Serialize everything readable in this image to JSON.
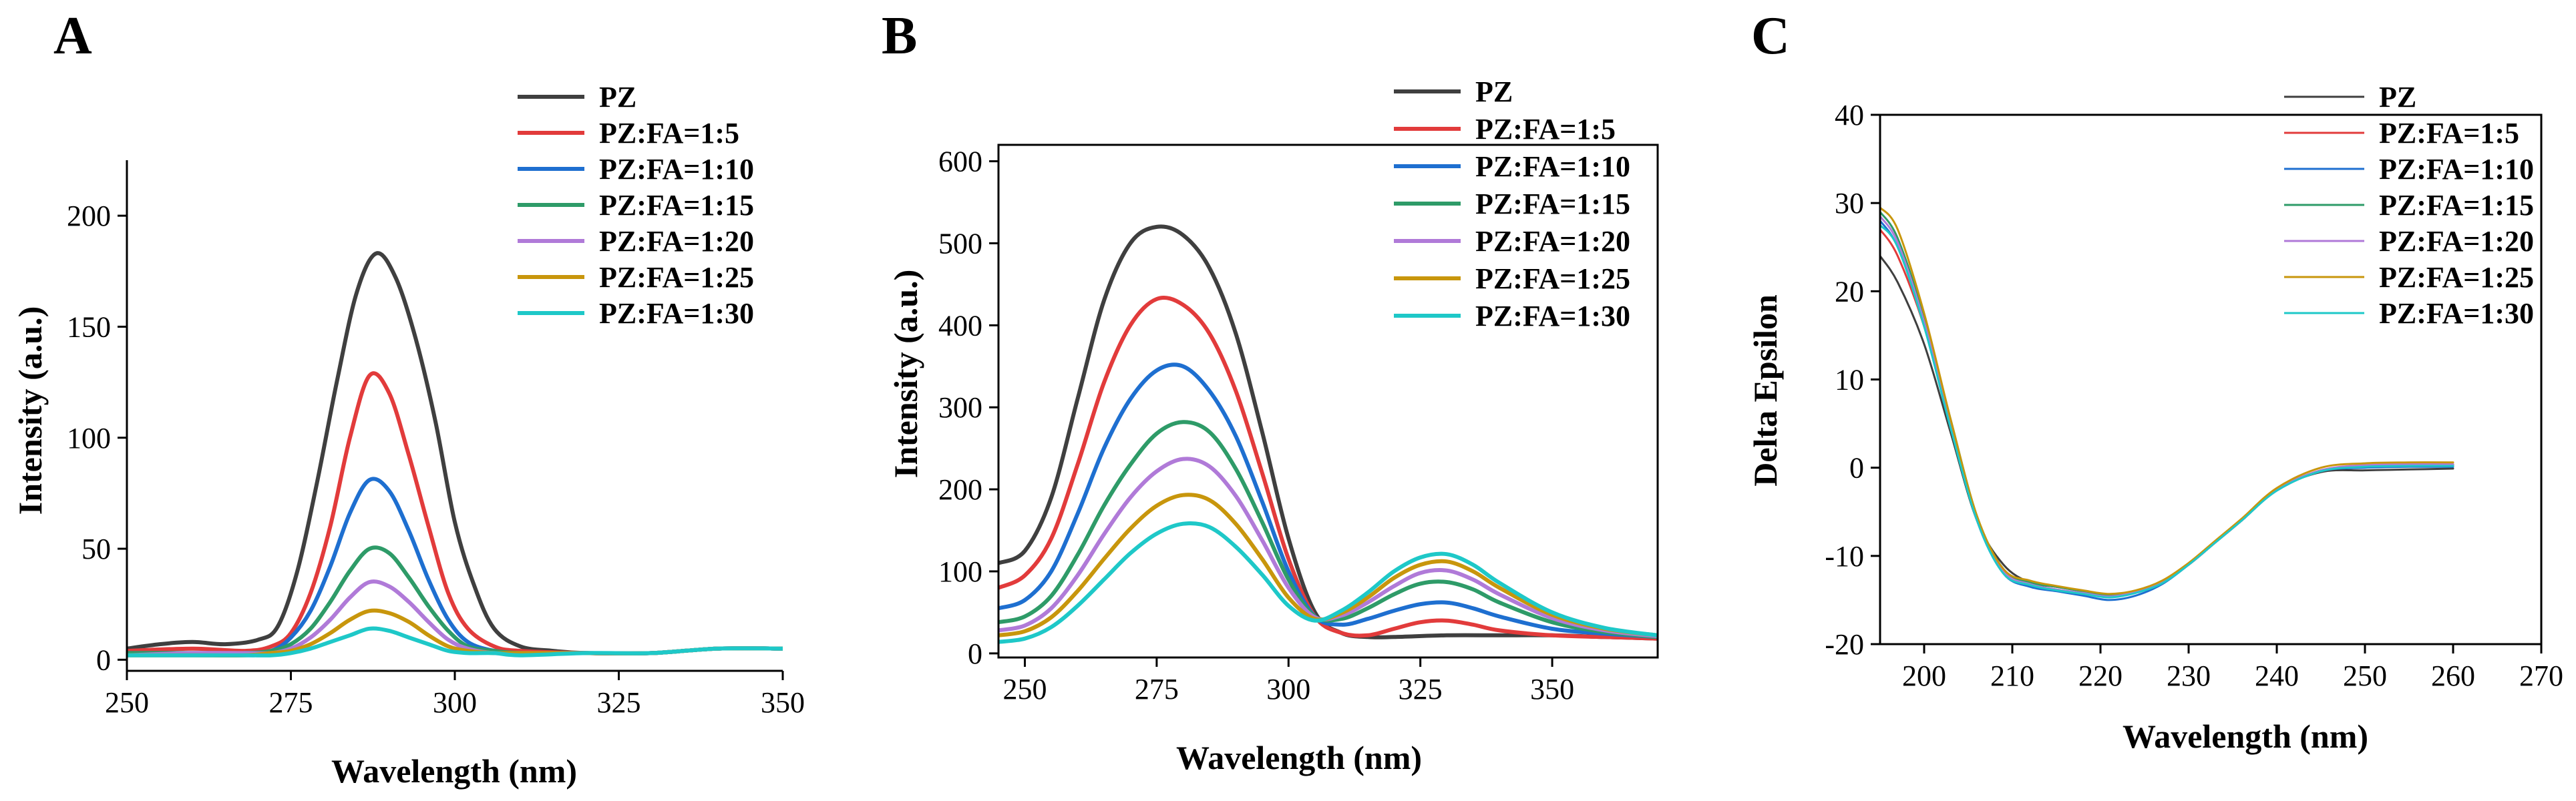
{
  "figure": {
    "panels": [
      "A",
      "B",
      "C"
    ]
  },
  "colors": {
    "PZ": "#3f3f3f",
    "PZ:FA=1:5": "#e23b3b",
    "PZ:FA=1:10": "#1e6fd0",
    "PZ:FA=1:15": "#2e9b68",
    "PZ:FA=1:20": "#b07ad8",
    "PZ:FA=1:25": "#c8960c",
    "PZ:FA=1:30": "#1ec8c8"
  },
  "chart_data": [
    {
      "panel": "A",
      "type": "line",
      "title": "",
      "xlabel": "Wavelength (nm)",
      "ylabel": "Intensity (a.u.)",
      "xlim": [
        250,
        350
      ],
      "ylim": [
        -5,
        225
      ],
      "xticks": [
        250,
        275,
        300,
        325,
        350
      ],
      "yticks": [
        0,
        50,
        100,
        150,
        200
      ],
      "legend_position": "top-right",
      "series": [
        {
          "name": "PZ",
          "x": [
            250,
            255,
            260,
            265,
            270,
            273,
            276,
            279,
            282,
            285,
            288,
            291,
            294,
            297,
            300,
            303,
            306,
            310,
            315,
            320,
            330,
            340,
            350
          ],
          "y": [
            5,
            7,
            8,
            7,
            9,
            15,
            40,
            80,
            125,
            165,
            183,
            172,
            145,
            108,
            62,
            33,
            14,
            6,
            4,
            3,
            3,
            5,
            5
          ]
        },
        {
          "name": "PZ:FA=1:5",
          "x": [
            250,
            260,
            268,
            272,
            275,
            278,
            281,
            284,
            287,
            290,
            293,
            296,
            299,
            302,
            306,
            310,
            320,
            330,
            340,
            350
          ],
          "y": [
            4,
            5,
            4,
            6,
            12,
            30,
            60,
            100,
            128,
            120,
            92,
            60,
            30,
            14,
            6,
            4,
            3,
            3,
            5,
            5
          ]
        },
        {
          "name": "PZ:FA=1:10",
          "x": [
            250,
            260,
            268,
            272,
            275,
            278,
            281,
            284,
            287,
            290,
            293,
            296,
            299,
            302,
            306,
            310,
            320,
            330,
            340,
            350
          ],
          "y": [
            3,
            3,
            3,
            4,
            10,
            22,
            42,
            66,
            81,
            76,
            58,
            36,
            18,
            8,
            4,
            3,
            3,
            3,
            5,
            5
          ]
        },
        {
          "name": "PZ:FA=1:15",
          "x": [
            250,
            260,
            268,
            272,
            275,
            278,
            281,
            284,
            287,
            290,
            293,
            296,
            299,
            302,
            306,
            310,
            320,
            330,
            340,
            350
          ],
          "y": [
            3,
            3,
            3,
            4,
            7,
            14,
            26,
            40,
            50,
            48,
            37,
            24,
            13,
            6,
            4,
            3,
            3,
            3,
            5,
            5
          ]
        },
        {
          "name": "PZ:FA=1:20",
          "x": [
            250,
            260,
            268,
            272,
            275,
            278,
            281,
            284,
            287,
            290,
            293,
            296,
            299,
            302,
            306,
            310,
            320,
            330,
            340,
            350
          ],
          "y": [
            2,
            3,
            3,
            3,
            5,
            10,
            18,
            28,
            35,
            33,
            26,
            17,
            9,
            5,
            3,
            3,
            3,
            3,
            5,
            5
          ]
        },
        {
          "name": "PZ:FA=1:25",
          "x": [
            250,
            260,
            268,
            272,
            275,
            278,
            281,
            284,
            287,
            290,
            293,
            296,
            299,
            302,
            306,
            310,
            320,
            330,
            340,
            350
          ],
          "y": [
            2,
            2,
            2,
            3,
            4,
            7,
            12,
            18,
            22,
            21,
            17,
            11,
            6,
            4,
            3,
            3,
            3,
            3,
            5,
            5
          ]
        },
        {
          "name": "PZ:FA=1:30",
          "x": [
            250,
            260,
            268,
            272,
            275,
            278,
            281,
            284,
            287,
            290,
            293,
            296,
            299,
            302,
            306,
            310,
            320,
            330,
            340,
            350
          ],
          "y": [
            2,
            2,
            2,
            2,
            3,
            5,
            8,
            11,
            14,
            13,
            10,
            7,
            4,
            3,
            3,
            2,
            3,
            3,
            5,
            5
          ]
        }
      ]
    },
    {
      "panel": "B",
      "type": "line",
      "title": "",
      "xlabel": "Wavelength (nm)",
      "ylabel": "Intensity (a.u.)",
      "xlim": [
        245,
        370
      ],
      "ylim": [
        -5,
        620
      ],
      "xticks": [
        250,
        275,
        300,
        325,
        350
      ],
      "yticks": [
        0,
        100,
        200,
        300,
        400,
        500,
        600
      ],
      "legend_position": "top-right",
      "series": [
        {
          "name": "PZ",
          "x": [
            245,
            250,
            255,
            260,
            265,
            270,
            275,
            280,
            285,
            290,
            295,
            300,
            305,
            310,
            315,
            320,
            330,
            340,
            350,
            360,
            370
          ],
          "y": [
            110,
            125,
            190,
            310,
            430,
            500,
            520,
            510,
            470,
            390,
            270,
            140,
            50,
            25,
            20,
            20,
            22,
            22,
            22,
            20,
            18
          ]
        },
        {
          "name": "PZ:FA=1:5",
          "x": [
            245,
            250,
            255,
            260,
            265,
            270,
            275,
            280,
            285,
            290,
            295,
            300,
            305,
            310,
            315,
            320,
            325,
            330,
            335,
            340,
            350,
            360,
            370
          ],
          "y": [
            80,
            95,
            140,
            230,
            330,
            400,
            432,
            425,
            390,
            320,
            220,
            115,
            45,
            25,
            22,
            30,
            38,
            40,
            35,
            28,
            22,
            20,
            18
          ]
        },
        {
          "name": "PZ:FA=1:10",
          "x": [
            245,
            250,
            255,
            260,
            265,
            270,
            275,
            280,
            285,
            290,
            295,
            300,
            305,
            310,
            315,
            320,
            325,
            330,
            335,
            340,
            350,
            360,
            370
          ],
          "y": [
            55,
            65,
            100,
            170,
            250,
            310,
            345,
            350,
            320,
            265,
            185,
            100,
            45,
            35,
            42,
            52,
            60,
            62,
            55,
            45,
            30,
            24,
            20
          ]
        },
        {
          "name": "PZ:FA=1:15",
          "x": [
            245,
            250,
            255,
            260,
            265,
            270,
            275,
            280,
            285,
            290,
            295,
            300,
            305,
            310,
            315,
            320,
            325,
            330,
            335,
            340,
            350,
            360,
            370
          ],
          "y": [
            38,
            45,
            70,
            120,
            180,
            230,
            268,
            282,
            270,
            225,
            160,
            90,
            45,
            42,
            55,
            72,
            85,
            87,
            78,
            62,
            38,
            26,
            20
          ]
        },
        {
          "name": "PZ:FA=1:20",
          "x": [
            245,
            250,
            255,
            260,
            265,
            270,
            275,
            280,
            285,
            290,
            295,
            300,
            305,
            310,
            315,
            320,
            325,
            330,
            335,
            340,
            350,
            360,
            370
          ],
          "y": [
            28,
            34,
            55,
            95,
            145,
            190,
            222,
            237,
            228,
            192,
            138,
            80,
            44,
            46,
            62,
            82,
            98,
            101,
            90,
            72,
            43,
            28,
            21
          ]
        },
        {
          "name": "PZ:FA=1:25",
          "x": [
            245,
            250,
            255,
            260,
            265,
            270,
            275,
            280,
            285,
            290,
            295,
            300,
            305,
            310,
            315,
            320,
            325,
            330,
            335,
            340,
            350,
            360,
            370
          ],
          "y": [
            22,
            27,
            44,
            76,
            115,
            152,
            180,
            193,
            187,
            158,
            115,
            68,
            42,
            49,
            68,
            92,
            108,
            112,
            100,
            80,
            47,
            30,
            22
          ]
        },
        {
          "name": "PZ:FA=1:30",
          "x": [
            245,
            250,
            255,
            260,
            265,
            270,
            275,
            280,
            285,
            290,
            295,
            300,
            305,
            310,
            315,
            320,
            325,
            330,
            335,
            340,
            350,
            360,
            370
          ],
          "y": [
            14,
            18,
            32,
            58,
            90,
            122,
            146,
            158,
            154,
            130,
            96,
            58,
            40,
            52,
            74,
            100,
            117,
            121,
            108,
            86,
            50,
            31,
            22
          ]
        }
      ]
    },
    {
      "panel": "C",
      "type": "line",
      "title": "",
      "xlabel": "Wavelength (nm)",
      "ylabel": "Delta Epsilon",
      "xlim": [
        195,
        270
      ],
      "ylim": [
        -20,
        40
      ],
      "xticks": [
        200,
        210,
        220,
        230,
        240,
        250,
        260,
        270
      ],
      "yticks": [
        -20,
        -10,
        0,
        10,
        20,
        30,
        40
      ],
      "legend_position": "top-right",
      "series": [
        {
          "name": "PZ",
          "x": [
            195,
            197,
            200,
            203,
            206,
            209,
            212,
            215,
            218,
            221,
            224,
            227,
            230,
            233,
            236,
            240,
            245,
            250,
            255,
            260
          ],
          "y": [
            24,
            21,
            14,
            4,
            -6,
            -11,
            -13,
            -13.5,
            -14,
            -14.5,
            -14,
            -13,
            -11,
            -8.5,
            -6,
            -2.5,
            -0.5,
            -0.3,
            -0.2,
            -0.1
          ]
        },
        {
          "name": "PZ:FA=1:5",
          "x": [
            195,
            197,
            200,
            203,
            206,
            209,
            212,
            215,
            218,
            221,
            224,
            227,
            230,
            233,
            236,
            240,
            245,
            250,
            255,
            260
          ],
          "y": [
            27,
            24,
            16,
            5,
            -6,
            -11.5,
            -13,
            -13.5,
            -14,
            -14.5,
            -14,
            -13,
            -11,
            -8.5,
            -6,
            -2.5,
            -0.3,
            0.2,
            0.3,
            0.3
          ]
        },
        {
          "name": "PZ:FA=1:10",
          "x": [
            195,
            197,
            200,
            203,
            206,
            209,
            212,
            215,
            218,
            221,
            224,
            227,
            230,
            233,
            236,
            240,
            245,
            250,
            255,
            260
          ],
          "y": [
            28,
            25,
            16.5,
            5,
            -6,
            -12,
            -13.5,
            -14,
            -14.5,
            -15,
            -14.5,
            -13.2,
            -11,
            -8.5,
            -6,
            -2.6,
            -0.4,
            0,
            0.1,
            0.1
          ]
        },
        {
          "name": "PZ:FA=1:15",
          "x": [
            195,
            197,
            200,
            203,
            206,
            209,
            212,
            215,
            218,
            221,
            224,
            227,
            230,
            233,
            236,
            240,
            245,
            250,
            255,
            260
          ],
          "y": [
            29,
            26,
            17,
            5.5,
            -5.5,
            -11.5,
            -13,
            -13.5,
            -14,
            -14.5,
            -14,
            -13,
            -11,
            -8.5,
            -6,
            -2.5,
            -0.3,
            0.2,
            0.3,
            0.3
          ]
        },
        {
          "name": "PZ:FA=1:20",
          "x": [
            195,
            197,
            200,
            203,
            206,
            209,
            212,
            215,
            218,
            221,
            224,
            227,
            230,
            233,
            236,
            240,
            245,
            250,
            255,
            260
          ],
          "y": [
            28.5,
            25.5,
            16.5,
            5,
            -6,
            -11.8,
            -13.2,
            -13.8,
            -14.2,
            -14.6,
            -14.1,
            -13,
            -11,
            -8.5,
            -6,
            -2.5,
            -0.3,
            0.3,
            0.4,
            0.4
          ]
        },
        {
          "name": "PZ:FA=1:25",
          "x": [
            195,
            197,
            200,
            203,
            206,
            209,
            212,
            215,
            218,
            221,
            224,
            227,
            230,
            233,
            236,
            240,
            245,
            250,
            255,
            260
          ],
          "y": [
            29.5,
            27,
            17.5,
            5.5,
            -5.5,
            -11.5,
            -12.8,
            -13.4,
            -13.9,
            -14.3,
            -13.9,
            -12.8,
            -10.8,
            -8.3,
            -5.8,
            -2.3,
            0,
            0.5,
            0.6,
            0.6
          ]
        },
        {
          "name": "PZ:FA=1:30",
          "x": [
            195,
            197,
            200,
            203,
            206,
            209,
            212,
            215,
            218,
            221,
            224,
            227,
            230,
            233,
            236,
            240,
            245,
            250,
            255,
            260
          ],
          "y": [
            27.5,
            25,
            16,
            4.5,
            -6,
            -12,
            -13.3,
            -13.9,
            -14.3,
            -14.7,
            -14.2,
            -13.1,
            -11,
            -8.5,
            -6,
            -2.6,
            -0.4,
            0.1,
            0.2,
            0.2
          ]
        }
      ]
    }
  ]
}
